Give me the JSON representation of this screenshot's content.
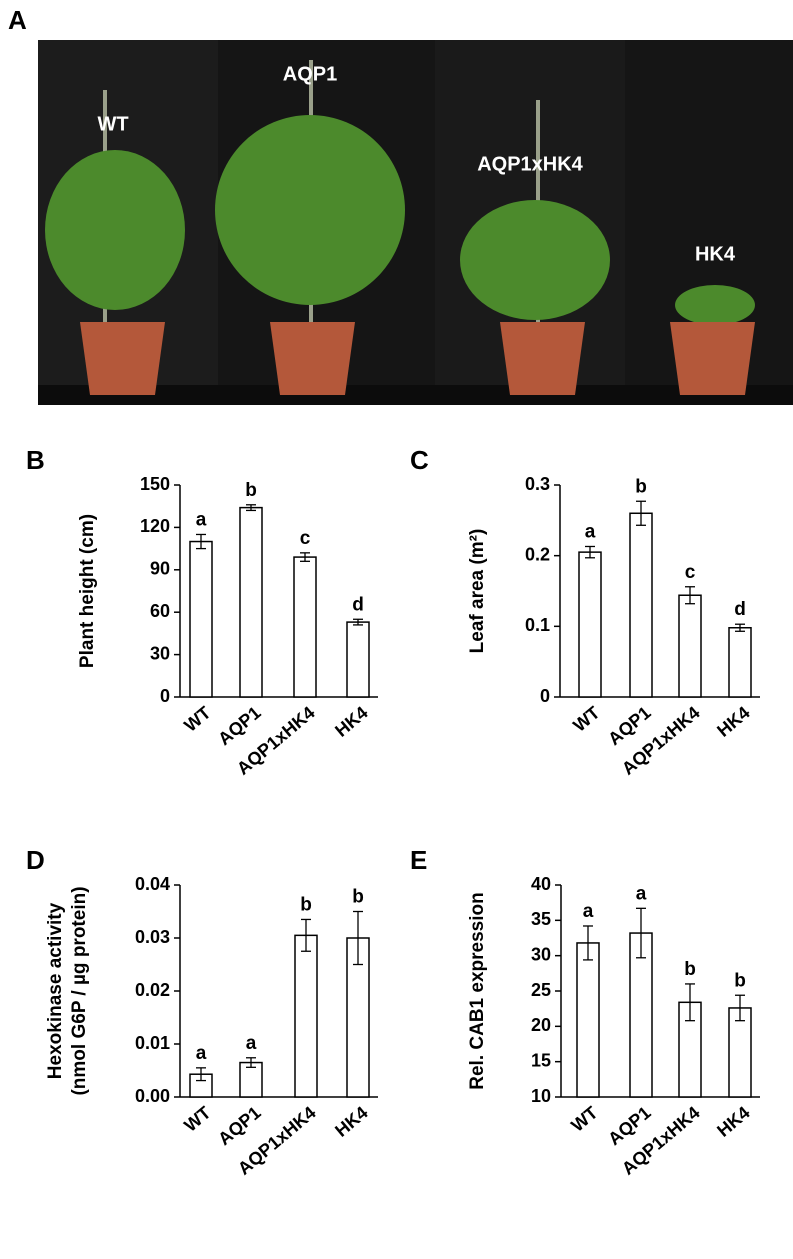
{
  "photo": {
    "panel": "A",
    "labels": [
      "WT",
      "AQP1",
      "AQP1xHK4",
      "HK4"
    ]
  },
  "chart_data": [
    {
      "type": "bar",
      "panel": "B",
      "ylabel": [
        "Plant height (cm)"
      ],
      "categories": [
        "WT",
        "AQP1",
        "AQP1xHK4",
        "HK4"
      ],
      "values": [
        110,
        134,
        99,
        53
      ],
      "errors": [
        5,
        2,
        3,
        2
      ],
      "annotations": [
        "a",
        "b",
        "c",
        "d"
      ],
      "color": "#ffffff",
      "ylim": [
        0,
        150
      ],
      "yticks": [
        0,
        30,
        60,
        90,
        120,
        150
      ]
    },
    {
      "type": "bar",
      "panel": "C",
      "ylabel": [
        "Leaf area (m²)"
      ],
      "categories": [
        "WT",
        "AQP1",
        "AQP1xHK4",
        "HK4"
      ],
      "values": [
        0.205,
        0.26,
        0.144,
        0.098
      ],
      "errors": [
        0.008,
        0.017,
        0.012,
        0.005
      ],
      "annotations": [
        "a",
        "b",
        "c",
        "d"
      ],
      "color": "#ffffff",
      "ylim": [
        0,
        0.3
      ],
      "yticks": [
        0,
        0.1,
        0.2,
        0.3
      ]
    },
    {
      "type": "bar",
      "panel": "D",
      "ylabel": [
        "Hexokinase activity",
        "(nmol G6P / µg protein)"
      ],
      "categories": [
        "WT",
        "AQP1",
        "AQP1xHK4",
        "HK4"
      ],
      "values": [
        0.0043,
        0.0065,
        0.0305,
        0.03
      ],
      "errors": [
        0.0012,
        0.0009,
        0.003,
        0.005
      ],
      "annotations": [
        "a",
        "a",
        "b",
        "b"
      ],
      "color": "#ffffff",
      "ylim": [
        0,
        0.04
      ],
      "yticks": [
        {
          "value": 0,
          "label": "0.00"
        },
        {
          "value": 0.01,
          "label": "0.01"
        },
        {
          "value": 0.02,
          "label": "0.02"
        },
        0.03,
        0.04
      ]
    },
    {
      "type": "bar",
      "panel": "E",
      "ylabel": [
        "Rel. CAB1 expression"
      ],
      "categories": [
        "WT",
        "AQP1",
        "AQP1xHK4",
        "HK4"
      ],
      "values": [
        31.8,
        33.2,
        23.4,
        22.6
      ],
      "errors": [
        2.4,
        3.5,
        2.6,
        1.8
      ],
      "annotations": [
        "a",
        "a",
        "b",
        "b"
      ],
      "color": "#ffffff",
      "ylim": [
        10,
        40
      ],
      "yticks": [
        10,
        15,
        20,
        25,
        30,
        35,
        40
      ]
    }
  ]
}
